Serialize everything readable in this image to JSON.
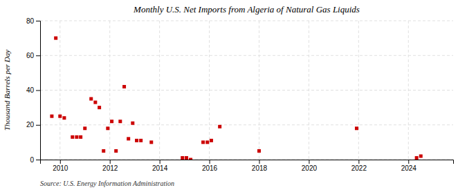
{
  "chart_data": {
    "type": "scatter",
    "title": "Monthly U.S. Net Imports from Algeria of Natural Gas Liquids",
    "y_label": "Thousand Barrels per Day",
    "annotations": [
      "Source: U.S. Energy Information Administration"
    ],
    "x": [
      2009.67,
      2009.83,
      2010.0,
      2010.17,
      2010.5,
      2010.67,
      2010.83,
      2011.0,
      2011.25,
      2011.42,
      2011.58,
      2011.75,
      2011.92,
      2012.08,
      2012.25,
      2012.42,
      2012.58,
      2012.75,
      2012.92,
      2013.08,
      2013.25,
      2013.67,
      2014.92,
      2015.08,
      2015.25,
      2015.75,
      2015.92,
      2016.08,
      2016.42,
      2018.0,
      2021.92,
      2024.33,
      2024.5
    ],
    "values": [
      25,
      70,
      25,
      24,
      13,
      13,
      13,
      18,
      35,
      33,
      30,
      5,
      18,
      22,
      5,
      22,
      42,
      12,
      21,
      11,
      11,
      10,
      1,
      1,
      0,
      10,
      10,
      11,
      19,
      5,
      18,
      1,
      2
    ],
    "color": "#cc0000",
    "marker": "square",
    "xlim": [
      2009.2,
      2025.8
    ],
    "ylim": [
      0,
      80
    ],
    "xticks": [
      2010,
      2012,
      2014,
      2016,
      2018,
      2020,
      2022,
      2024
    ],
    "yticks": [
      0,
      20,
      40,
      60,
      80
    ],
    "grid": true
  }
}
